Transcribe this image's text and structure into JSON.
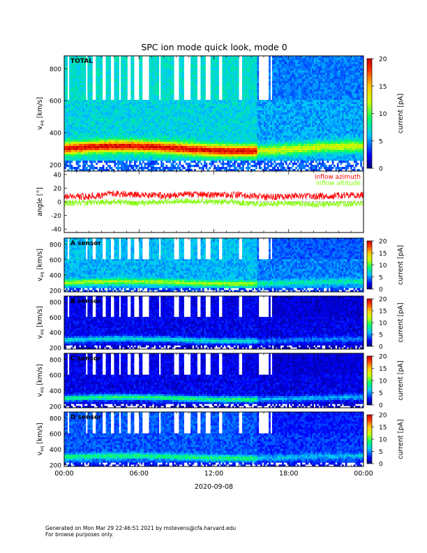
{
  "title": "SPC ion mode quick look, mode 0",
  "footer": {
    "line1": "Generated on Mon Mar 29 22:46:51 2021 by mstevens@cfa.harvard.edu",
    "line2": "For browse purposes only."
  },
  "xaxis": {
    "ticks": [
      "00:00",
      "06:00",
      "12:00",
      "18:00",
      "00:00"
    ],
    "tick_hours": [
      0,
      6,
      12,
      18,
      24
    ],
    "date_label": "2020-09-08"
  },
  "colors": {
    "inflow_azimuth": "#ff0000",
    "inflow_altitude": "#80ff00"
  },
  "chart_data": [
    {
      "type": "heatmap",
      "label": "TOTAL",
      "ylabel": "v_eq [km/s]",
      "ylim": [
        160,
        880
      ],
      "yticks": [
        200,
        400,
        600,
        800
      ],
      "colorbar": {
        "label": "current [pA]",
        "range": [
          0,
          20
        ],
        "ticks": [
          0,
          5,
          10,
          15,
          20
        ],
        "colormap": "rainbow"
      },
      "background_level_pA": 6,
      "peak_band": {
        "center_kms": 300,
        "peak_current_pA": 19
      }
    },
    {
      "type": "line",
      "ylabel": "angle [°]",
      "ylim": [
        -45,
        45
      ],
      "yticks": [
        -40,
        -20,
        0,
        20,
        40
      ],
      "series": [
        {
          "name": "inflow azimuth",
          "x_hours": [
            0,
            2,
            4,
            6,
            8,
            10,
            12,
            14,
            16,
            18,
            20,
            22,
            24
          ],
          "values": [
            7,
            8,
            12,
            10,
            9,
            11,
            10,
            10,
            7,
            8,
            8,
            9,
            10
          ]
        },
        {
          "name": "inflow altitude",
          "x_hours": [
            0,
            2,
            4,
            6,
            8,
            10,
            12,
            14,
            16,
            18,
            20,
            22,
            24
          ],
          "values": [
            -2,
            -1,
            0,
            -2,
            0,
            1,
            0,
            -1,
            -3,
            -2,
            -4,
            -3,
            -3
          ]
        }
      ]
    },
    {
      "type": "heatmap",
      "label": "A sensor",
      "ylabel": "v_eq [km/s]",
      "ylim": [
        180,
        880
      ],
      "yticks": [
        200,
        400,
        600,
        800
      ],
      "colorbar": {
        "label": "current [pA]",
        "range": [
          0,
          20
        ],
        "ticks": [
          0,
          5,
          10,
          15,
          20
        ],
        "colormap": "rainbow"
      },
      "background_level_pA": 5,
      "peak_band": {
        "center_kms": 300,
        "peak_current_pA": 11
      }
    },
    {
      "type": "heatmap",
      "label": "B sensor",
      "ylabel": "v_eq [km/s]",
      "ylim": [
        180,
        880
      ],
      "yticks": [
        200,
        400,
        600,
        800
      ],
      "colorbar": {
        "label": "current [pA]",
        "range": [
          0,
          20
        ],
        "ticks": [
          0,
          5,
          10,
          15,
          20
        ],
        "colormap": "rainbow"
      },
      "background_level_pA": 1,
      "peak_band": {
        "center_kms": 300,
        "peak_current_pA": 6
      }
    },
    {
      "type": "heatmap",
      "label": "C sensor",
      "ylabel": "v_eq [km/s]",
      "ylim": [
        180,
        880
      ],
      "yticks": [
        200,
        400,
        600,
        800
      ],
      "colorbar": {
        "label": "current [pA]",
        "range": [
          0,
          20
        ],
        "ticks": [
          0,
          5,
          10,
          15,
          20
        ],
        "colormap": "rainbow"
      },
      "background_level_pA": 1,
      "peak_band": {
        "center_kms": 300,
        "peak_current_pA": 8
      }
    },
    {
      "type": "heatmap",
      "label": "D sensor",
      "ylabel": "v_eq [km/s]",
      "ylim": [
        180,
        880
      ],
      "yticks": [
        200,
        400,
        600,
        800
      ],
      "colorbar": {
        "label": "current [pA]",
        "range": [
          0,
          20
        ],
        "ticks": [
          0,
          5,
          10,
          15,
          20
        ],
        "colormap": "rainbow"
      },
      "background_level_pA": 3,
      "peak_band": {
        "center_kms": 300,
        "peak_current_pA": 8
      }
    }
  ]
}
